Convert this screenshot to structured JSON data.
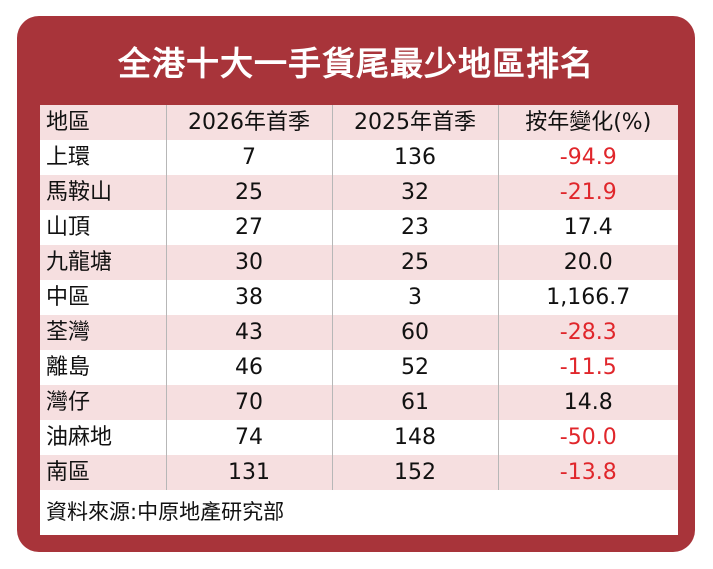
{
  "title": "全港十大一手貨尾最少地區排名",
  "source": "資料來源:中原地產研究部",
  "colors": {
    "frame": "#a8343a",
    "band": "#f6dfe0",
    "negative": "#e0262b"
  },
  "chart_data": {
    "type": "table",
    "columns": [
      "地區",
      "2026年首季",
      "2025年首季",
      "按年變化(%)"
    ],
    "rows": [
      [
        "上環",
        "7",
        "136",
        "-94.9"
      ],
      [
        "馬鞍山",
        "25",
        "32",
        "-21.9"
      ],
      [
        "山頂",
        "27",
        "23",
        "17.4"
      ],
      [
        "九龍塘",
        "30",
        "25",
        "20.0"
      ],
      [
        "中區",
        "38",
        "3",
        "1,166.7"
      ],
      [
        "荃灣",
        "43",
        "60",
        "-28.3"
      ],
      [
        "離島",
        "46",
        "52",
        "-11.5"
      ],
      [
        "灣仔",
        "70",
        "61",
        "14.8"
      ],
      [
        "油麻地",
        "74",
        "148",
        "-50.0"
      ],
      [
        "南區",
        "131",
        "152",
        "-13.8"
      ]
    ]
  }
}
